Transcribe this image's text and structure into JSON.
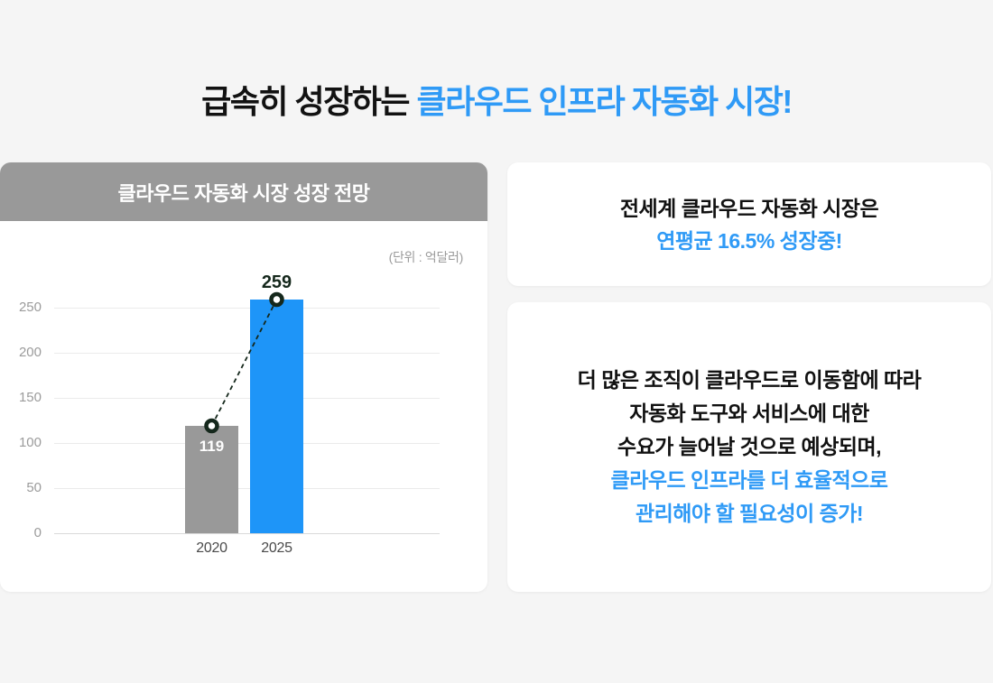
{
  "title": {
    "prefix": "급속히 성장하는 ",
    "highlight": "클라우드 인프라 자동화 시장!"
  },
  "colors": {
    "page_background": "#F5F5F5",
    "accent_blue": "#2F9AF6",
    "bar_blue": "#1E95F8",
    "bar_gray": "#999999",
    "header_gray": "#999999",
    "marker_dark": "#15281C"
  },
  "chart": {
    "header": "클라우드 자동화 시장 성장 전망",
    "unit": "(단위 : 억달러)"
  },
  "chart_data": {
    "type": "bar",
    "title": "클라우드 자동화 시장 성장 전망",
    "unit_label": "(단위 : 억달러)",
    "categories": [
      "2020",
      "2025"
    ],
    "values": [
      119,
      259
    ],
    "bar_colors": [
      "#999999",
      "#1E95F8"
    ],
    "value_label_styles": [
      "inside-top-white",
      "above-dark"
    ],
    "yticks": [
      0,
      50,
      100,
      150,
      200,
      250
    ],
    "ylim": [
      0,
      250
    ],
    "grid": "horizontal",
    "legend": "none",
    "overlay": "dashed trend line connecting bar tops with white-filled dark ring markers"
  },
  "cards": {
    "growth": {
      "line1": "전세계 클라우드 자동화 시장은",
      "line2": "연평균 16.5% 성장중!"
    },
    "demand": {
      "line1": "더 많은 조직이 클라우드로 이동함에 따라",
      "line2": "자동화 도구와 서비스에 대한",
      "line3": "수요가 늘어날 것으로 예상되며,",
      "line4": "클라우드 인프라를 더 효율적으로",
      "line5": "관리해야 할 필요성이 증가!"
    }
  }
}
